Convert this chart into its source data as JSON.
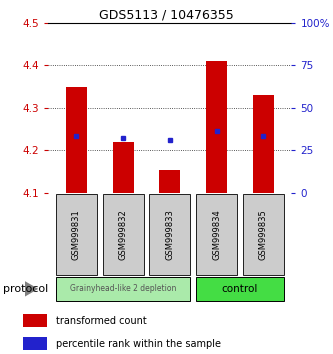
{
  "title": "GDS5113 / 10476355",
  "samples": [
    "GSM999831",
    "GSM999832",
    "GSM999833",
    "GSM999834",
    "GSM999835"
  ],
  "red_bar_bottom": [
    4.1,
    4.1,
    4.1,
    4.1,
    4.1
  ],
  "red_bar_top": [
    4.35,
    4.22,
    4.155,
    4.41,
    4.33
  ],
  "blue_dot_y": [
    4.235,
    4.23,
    4.225,
    4.245,
    4.235
  ],
  "ylim_left": [
    4.1,
    4.5
  ],
  "ylim_right": [
    0,
    100
  ],
  "yticks_left": [
    4.1,
    4.2,
    4.3,
    4.4,
    4.5
  ],
  "yticks_right": [
    0,
    25,
    50,
    75,
    100
  ],
  "ytick_labels_right": [
    "0",
    "25",
    "50",
    "75",
    "100%"
  ],
  "groups": [
    {
      "label": "Grainyhead-like 2 depletion",
      "color": "#aaeaaa",
      "samples": [
        0,
        1,
        2
      ]
    },
    {
      "label": "control",
      "color": "#44dd44",
      "samples": [
        3,
        4
      ]
    }
  ],
  "red_color": "#cc0000",
  "blue_color": "#2222cc",
  "left_tick_color": "#cc0000",
  "right_tick_color": "#2222cc",
  "grid_color": "#222222",
  "bg_color": "#ffffff",
  "sample_box_color": "#cccccc",
  "legend_red_label": "transformed count",
  "legend_blue_label": "percentile rank within the sample",
  "protocol_label": "protocol"
}
